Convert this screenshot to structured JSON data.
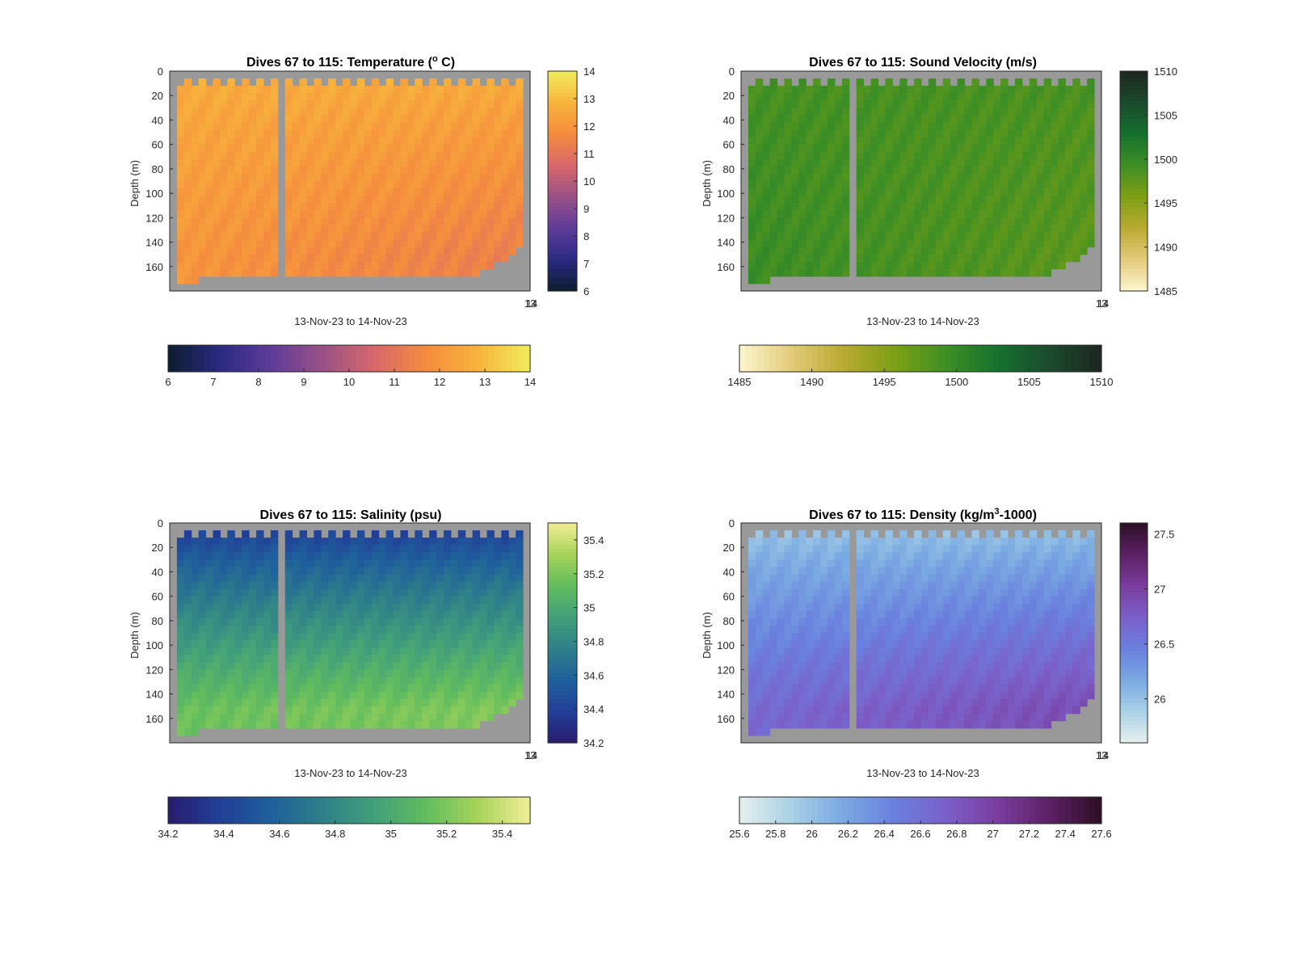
{
  "chart_data": [
    {
      "type": "heatmap",
      "title_main": "Dives 67 to 115: Temperature (",
      "title_sup": "o",
      "title_end": " C)",
      "ylabel": "Depth (m)",
      "xlabel": "13-Nov-23 to 14-Nov-23",
      "x_tick_labels": [
        "13",
        "14"
      ],
      "yticks": [
        0,
        20,
        40,
        60,
        80,
        100,
        120,
        140,
        160
      ],
      "ylim": [
        0,
        180
      ],
      "colorbar_range": [
        6,
        14
      ],
      "colorbar_right_ticks": [
        6,
        7,
        8,
        9,
        10,
        11,
        12,
        13,
        14
      ],
      "colorbar_bottom_ticks": [
        6,
        7,
        8,
        9,
        10,
        11,
        12,
        13,
        14
      ],
      "colormap": [
        "#0c1d2e",
        "#2a2a82",
        "#5e3c9a",
        "#9a5186",
        "#d8676a",
        "#f58c3e",
        "#f8b43c",
        "#f1ec5c"
      ],
      "surface_value": 12.7,
      "deep_value": 12.0,
      "deep_right_value": 11.3,
      "nan_color": "#999999"
    },
    {
      "type": "heatmap",
      "title_main": "Dives 67 to 115: Sound Velocity (m/s)",
      "title_sup": "",
      "title_end": "",
      "ylabel": "Depth (m)",
      "xlabel": "13-Nov-23 to 14-Nov-23",
      "x_tick_labels": [
        "13",
        "14"
      ],
      "yticks": [
        0,
        20,
        40,
        60,
        80,
        100,
        120,
        140,
        160
      ],
      "ylim": [
        0,
        180
      ],
      "colorbar_range": [
        1485,
        1510
      ],
      "colorbar_right_ticks": [
        1485,
        1490,
        1495,
        1500,
        1505,
        1510
      ],
      "colorbar_bottom_ticks": [
        1485,
        1490,
        1495,
        1500,
        1505,
        1510
      ],
      "colormap": [
        "#fdf6cf",
        "#e3cb7a",
        "#b9aa32",
        "#7e9f15",
        "#3e8f25",
        "#15712e",
        "#1b4a2d",
        "#1c2620"
      ],
      "surface_value": 1498.8,
      "deep_value": 1499.6,
      "deep_right_value": 1497.6,
      "nan_color": "#999999"
    },
    {
      "type": "heatmap",
      "title_main": "Dives 67 to 115: Salinity (psu)",
      "title_sup": "",
      "title_end": "",
      "ylabel": "Depth (m)",
      "xlabel": "13-Nov-23 to 14-Nov-23",
      "x_tick_labels": [
        "13",
        "14"
      ],
      "yticks": [
        0,
        20,
        40,
        60,
        80,
        100,
        120,
        140,
        160
      ],
      "ylim": [
        0,
        180
      ],
      "colorbar_range": [
        34.2,
        35.5
      ],
      "colorbar_right_ticks": [
        34.2,
        34.4,
        34.6,
        34.8,
        35,
        35.2,
        35.4
      ],
      "colorbar_bottom_ticks": [
        34.2,
        34.4,
        34.6,
        34.8,
        35,
        35.2,
        35.4
      ],
      "colormap": [
        "#281c6e",
        "#223f98",
        "#1f609c",
        "#2e8089",
        "#42a07a",
        "#62bd5e",
        "#a7d45a",
        "#f2ee96"
      ],
      "surface_value": 34.35,
      "deep_value": 35.15,
      "deep_right_value": 35.22,
      "nan_color": "#999999"
    },
    {
      "type": "heatmap",
      "title_main": "Dives 67 to 115: Density (kg/m",
      "title_sup": "3",
      "title_end": "-1000)",
      "ylabel": "Depth (m)",
      "xlabel": "13-Nov-23 to 14-Nov-23",
      "x_tick_labels": [
        "13",
        "14"
      ],
      "yticks": [
        0,
        20,
        40,
        60,
        80,
        100,
        120,
        140,
        160
      ],
      "ylim": [
        0,
        180
      ],
      "colorbar_range": [
        25.6,
        27.6
      ],
      "colorbar_right_ticks": [
        26,
        26.5,
        27,
        27.5
      ],
      "colorbar_bottom_ticks": [
        25.6,
        25.8,
        26,
        26.2,
        26.4,
        26.6,
        26.8,
        27,
        27.2,
        27.4,
        27.6
      ],
      "colormap": [
        "#e6f0ef",
        "#a9d1e6",
        "#79a9e2",
        "#6a80de",
        "#7b5fc8",
        "#7a3d9f",
        "#5c2065",
        "#2d0e24"
      ],
      "surface_value": 25.95,
      "deep_value": 26.65,
      "deep_right_value": 26.9,
      "nan_color": "#999999"
    }
  ]
}
